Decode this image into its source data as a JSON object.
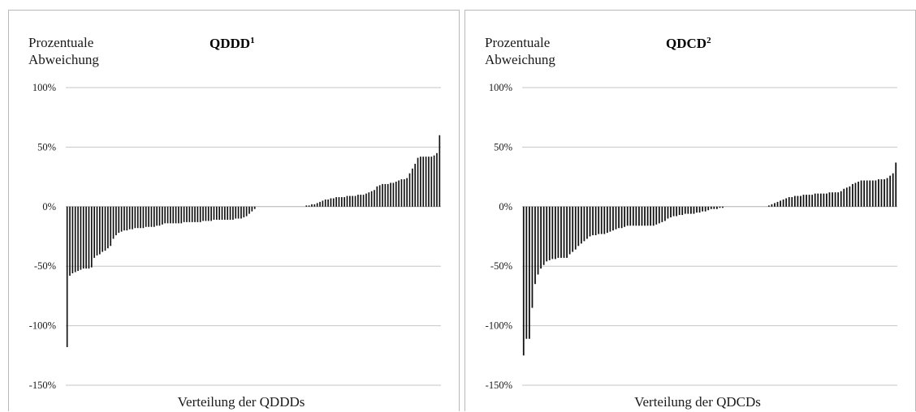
{
  "chart_data": [
    {
      "type": "bar",
      "title": "QDDD",
      "title_superscript": "1",
      "ylabel_lines": [
        "Prozentuale",
        "Abweichung"
      ],
      "xlabel": "Verteilung der QDDDs",
      "ylim": [
        -150,
        100
      ],
      "yticks": [
        100,
        50,
        0,
        -50,
        -100,
        -150
      ],
      "ytick_labels": [
        "100%",
        "50%",
        "0%",
        "-50%",
        "-100%",
        "-150%"
      ],
      "grid": true,
      "bar_color": "#111111",
      "values": [
        -118,
        -58,
        -56,
        -55,
        -54,
        -53,
        -52,
        -52,
        -52,
        -51,
        -43,
        -41,
        -40,
        -38,
        -37,
        -35,
        -33,
        -27,
        -24,
        -22,
        -21,
        -20,
        -20,
        -19,
        -19,
        -18,
        -18,
        -18,
        -18,
        -17,
        -17,
        -17,
        -17,
        -16,
        -16,
        -15,
        -14,
        -14,
        -14,
        -14,
        -14,
        -14,
        -14,
        -13,
        -13,
        -13,
        -13,
        -13,
        -13,
        -13,
        -12,
        -12,
        -12,
        -12,
        -11,
        -11,
        -11,
        -11,
        -11,
        -11,
        -11,
        -11,
        -10,
        -10,
        -10,
        -9,
        -8,
        -6,
        -4,
        -2,
        0,
        0,
        0,
        0,
        0,
        0,
        0,
        0,
        0,
        0,
        0,
        0,
        0,
        0,
        0,
        0,
        0,
        0,
        1,
        1,
        2,
        2,
        3,
        4,
        5,
        6,
        6,
        7,
        7,
        8,
        8,
        8,
        8,
        9,
        9,
        9,
        9,
        10,
        10,
        10,
        11,
        12,
        13,
        14,
        17,
        18,
        19,
        19,
        19,
        20,
        20,
        21,
        22,
        23,
        23,
        24,
        28,
        32,
        36,
        41,
        42,
        42,
        42,
        42,
        42,
        43,
        45,
        60
      ]
    },
    {
      "type": "bar",
      "title": "QDCD",
      "title_superscript": "2",
      "ylabel_lines": [
        "Prozentuale",
        "Abweichung"
      ],
      "xlabel": "Verteilung der QDCDs",
      "ylim": [
        -150,
        100
      ],
      "yticks": [
        100,
        50,
        0,
        -50,
        -100,
        -150
      ],
      "ytick_labels": [
        "100%",
        "50%",
        "0%",
        "-50%",
        "-100%",
        "-150%"
      ],
      "grid": true,
      "bar_color": "#111111",
      "values": [
        -125,
        -111,
        -111,
        -85,
        -65,
        -57,
        -52,
        -49,
        -46,
        -45,
        -44,
        -44,
        -43,
        -43,
        -43,
        -43,
        -40,
        -38,
        -36,
        -33,
        -31,
        -29,
        -27,
        -25,
        -24,
        -24,
        -23,
        -23,
        -23,
        -22,
        -21,
        -20,
        -19,
        -18,
        -18,
        -17,
        -16,
        -16,
        -16,
        -16,
        -16,
        -16,
        -16,
        -16,
        -16,
        -16,
        -15,
        -14,
        -13,
        -12,
        -10,
        -9,
        -8,
        -8,
        -7,
        -7,
        -6,
        -6,
        -6,
        -6,
        -5,
        -5,
        -4,
        -4,
        -3,
        -2,
        -2,
        -2,
        -1,
        -1,
        0,
        0,
        0,
        0,
        0,
        0,
        0,
        0,
        0,
        0,
        0,
        0,
        0,
        0,
        0,
        1,
        2,
        3,
        4,
        5,
        6,
        7,
        8,
        8,
        9,
        9,
        9,
        10,
        10,
        10,
        10,
        11,
        11,
        11,
        11,
        11,
        12,
        12,
        12,
        12,
        13,
        15,
        16,
        17,
        19,
        20,
        21,
        22,
        22,
        22,
        22,
        22,
        22,
        23,
        23,
        23,
        24,
        26,
        28,
        37
      ]
    }
  ]
}
